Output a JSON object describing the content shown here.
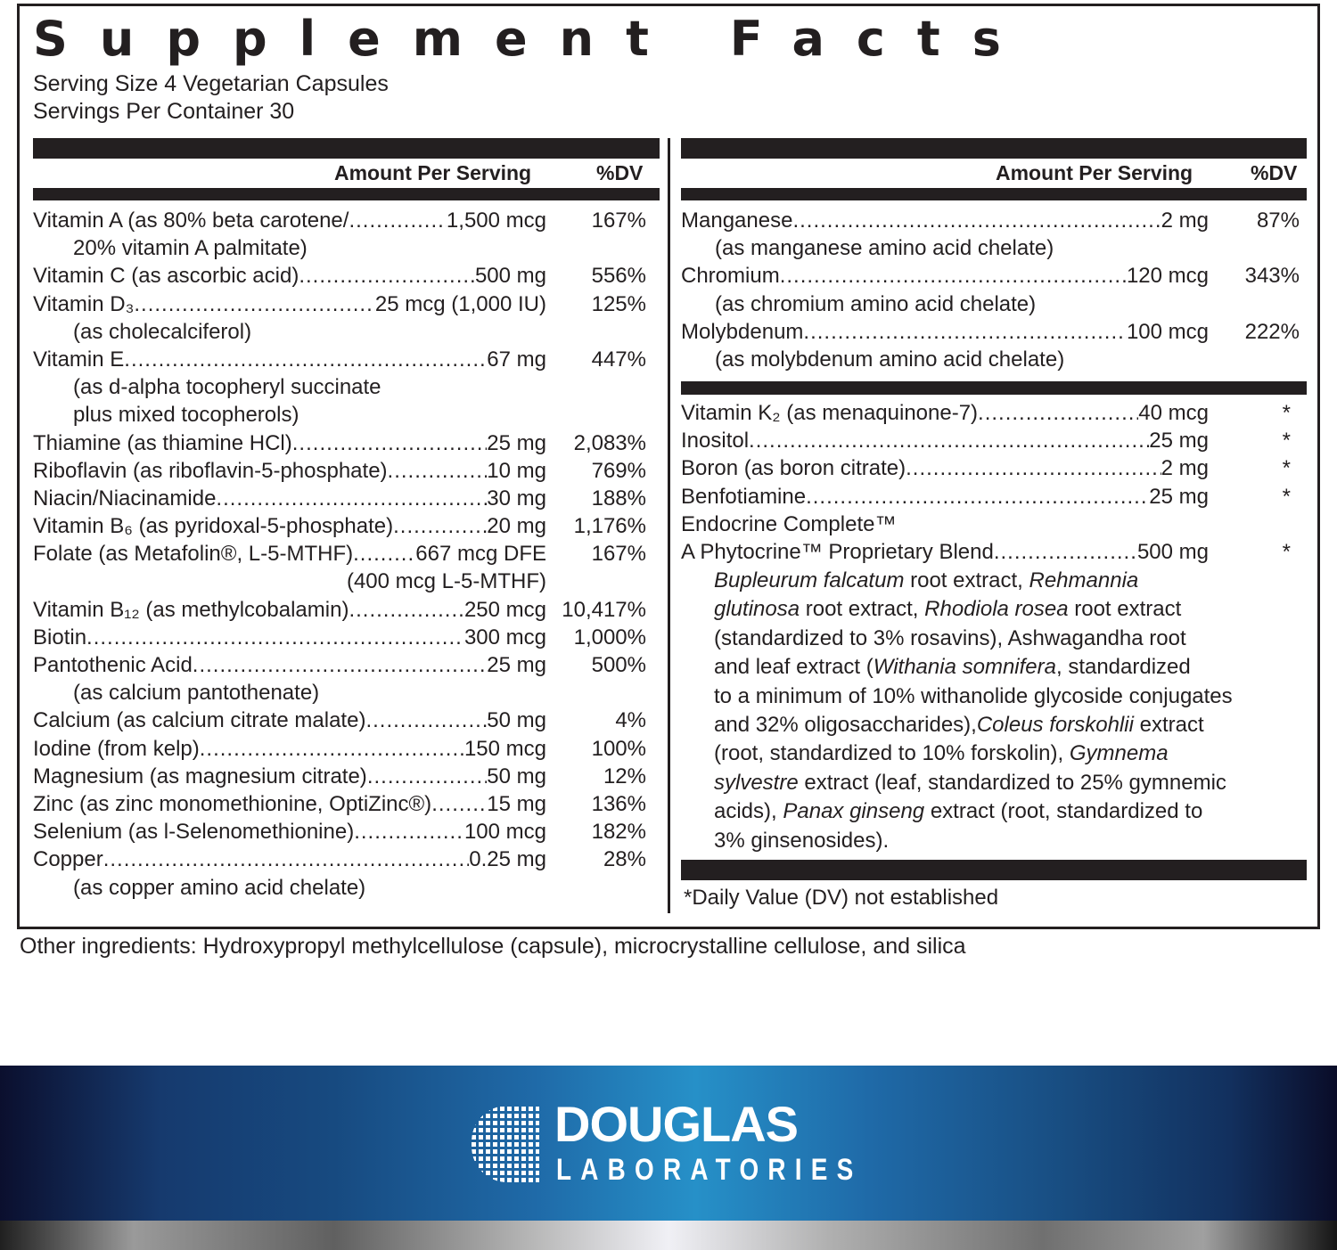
{
  "title": "Supplement Facts",
  "serving_size": "Serving Size 4 Vegetarian Capsules",
  "servings_per_container": "Servings Per Container 30",
  "header": {
    "amount": "Amount Per Serving",
    "dv": "%DV"
  },
  "left_rows": [
    {
      "name": "Vitamin A (as 80% beta carotene/",
      "amount": "1,500 mcg",
      "dv": "167%",
      "sub": [
        "20% vitamin A palmitate)"
      ]
    },
    {
      "name": "Vitamin C (as ascorbic acid)",
      "amount": "500 mg",
      "dv": "556%",
      "sub": []
    },
    {
      "name": "Vitamin D₃",
      "amount": "25 mcg (1,000 IU)",
      "dv": "125%",
      "sub": [
        "(as cholecalciferol)"
      ]
    },
    {
      "name": "Vitamin E",
      "amount": "67 mg",
      "dv": "447%",
      "sub": [
        "(as d-alpha tocopheryl succinate",
        "plus mixed tocopherols)"
      ]
    },
    {
      "name": "Thiamine (as thiamine HCl)",
      "amount": "25 mg",
      "dv": "2,083%",
      "sub": []
    },
    {
      "name": "Riboflavin (as riboflavin-5-phosphate)",
      "amount": "10 mg",
      "dv": "769%",
      "sub": []
    },
    {
      "name": "Niacin/Niacinamide",
      "amount": "30 mg",
      "dv": "188%",
      "sub": []
    },
    {
      "name": "Vitamin B₆ (as pyridoxal-5-phosphate)",
      "amount": "20 mg",
      "dv": "1,176%",
      "sub": []
    },
    {
      "name": "Folate (as Metafolin®, L-5-MTHF)",
      "amount": "667 mcg DFE",
      "dv": "167%",
      "sub": [
        "(400 mcg L-5-MTHF)"
      ],
      "sub_align": "right"
    },
    {
      "name": "Vitamin B₁₂ (as methylcobalamin)",
      "amount": "250 mcg",
      "dv": "10,417%",
      "sub": []
    },
    {
      "name": "Biotin",
      "amount": "300 mcg",
      "dv": "1,000%",
      "sub": []
    },
    {
      "name": "Pantothenic Acid",
      "amount": "25 mg",
      "dv": "500%",
      "sub": [
        "(as calcium pantothenate)"
      ]
    },
    {
      "name": "Calcium (as calcium citrate malate)",
      "amount": "50 mg",
      "dv": "4%",
      "sub": []
    },
    {
      "name": "Iodine (from kelp)",
      "amount": "150 mcg",
      "dv": "100%",
      "sub": []
    },
    {
      "name": "Magnesium (as magnesium citrate)",
      "amount": "50 mg",
      "dv": "12%",
      "sub": []
    },
    {
      "name": "Zinc (as zinc monomethionine, OptiZinc®)",
      "amount": "15 mg",
      "dv": "136%",
      "sub": []
    },
    {
      "name": "Selenium (as l-Selenomethionine)",
      "amount": "100 mcg",
      "dv": "182%",
      "sub": []
    },
    {
      "name": "Copper",
      "amount": "0.25 mg",
      "dv": "28%",
      "sub": [
        "(as copper amino acid chelate)"
      ]
    }
  ],
  "right_rows": [
    {
      "name": "Manganese",
      "amount": "2 mg",
      "dv": "87%",
      "sub": [
        "(as manganese amino acid chelate)"
      ]
    },
    {
      "name": "Chromium",
      "amount": "120 mcg",
      "dv": "343%",
      "sub": [
        "(as chromium amino acid chelate)"
      ]
    },
    {
      "name": "Molybdenum",
      "amount": "100 mcg",
      "dv": "222%",
      "sub": [
        "(as molybdenum amino acid chelate)"
      ]
    }
  ],
  "right_rows_2": [
    {
      "name": "Vitamin K₂ (as menaquinone-7)",
      "amount": "40 mcg",
      "dv": "*",
      "sub": []
    },
    {
      "name": "Inositol",
      "amount": "25 mg",
      "dv": "*",
      "sub": []
    },
    {
      "name": "Boron (as boron citrate)",
      "amount": "2 mg",
      "dv": "*",
      "sub": []
    },
    {
      "name": "Benfotiamine",
      "amount": "25 mg",
      "dv": "*",
      "sub": []
    },
    {
      "name": "Endocrine Complete™",
      "amount": "",
      "dv": "",
      "sub": [],
      "no_dots": true
    },
    {
      "name": "A Phytocrine™ Proprietary Blend",
      "amount": "500 mg",
      "dv": "*",
      "sub": []
    }
  ],
  "blend_lines": [
    [
      {
        "t": "Bupleurum falcatum",
        "i": true
      },
      {
        "t": " root extract, "
      },
      {
        "t": "Rehmannia",
        "i": true
      }
    ],
    [
      {
        "t": "glutinosa",
        "i": true
      },
      {
        "t": " root extract, "
      },
      {
        "t": "Rhodiola rosea",
        "i": true
      },
      {
        "t": " root extract"
      }
    ],
    [
      {
        "t": "(standardized to 3% rosavins), Ashwagandha root"
      }
    ],
    [
      {
        "t": "and leaf extract ("
      },
      {
        "t": "Withania somnifera",
        "i": true
      },
      {
        "t": ", standardized"
      }
    ],
    [
      {
        "t": "to a minimum of 10% withanolide glycoside conjugates"
      }
    ],
    [
      {
        "t": "and 32% oligosaccharides),"
      },
      {
        "t": "Coleus forskohlii",
        "i": true
      },
      {
        "t": " extract"
      }
    ],
    [
      {
        "t": "(root, standardized to 10% forskolin), "
      },
      {
        "t": "Gymnema",
        "i": true
      }
    ],
    [
      {
        "t": "sylvestre",
        "i": true
      },
      {
        "t": " extract (leaf, standardized to 25% gymnemic"
      }
    ],
    [
      {
        "t": "acids), "
      },
      {
        "t": "Panax ginseng",
        "i": true
      },
      {
        "t": " extract (root, standardized to"
      }
    ],
    [
      {
        "t": "3% ginsenosides)."
      }
    ]
  ],
  "footnote": "*Daily Value (DV) not established",
  "other_ingredients": "Other ingredients: Hydroxypropyl methylcellulose (capsule), microcrystalline cellulose, and silica",
  "brand": {
    "line1": "DOUGLAS",
    "line2": "LABORATORIES"
  },
  "colors": {
    "ink": "#231f20",
    "band_blue": "#2690c8",
    "band_dark": "#0b0f2e"
  }
}
